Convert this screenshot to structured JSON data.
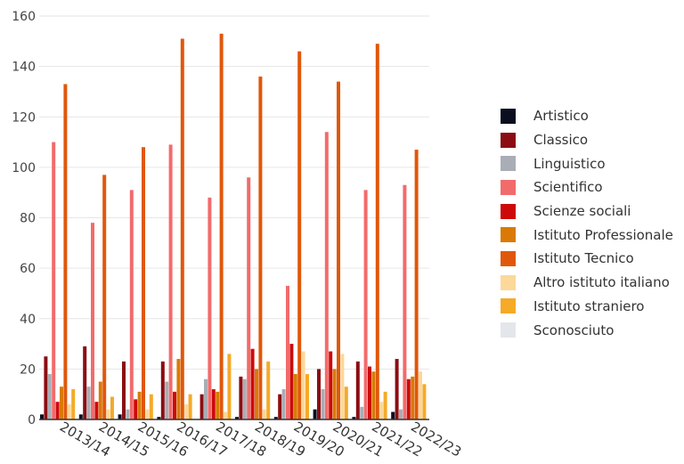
{
  "chart_data": {
    "type": "bar",
    "categories": [
      "2013/14",
      "2014/15",
      "2015/16",
      "2016/17",
      "2017/18",
      "2018/19",
      "2019/20",
      "2020/21",
      "2021/22",
      "2022/23"
    ],
    "ylim": [
      0,
      160
    ],
    "yticks": [
      0,
      20,
      40,
      60,
      80,
      100,
      120,
      140,
      160
    ],
    "grid": true,
    "legend_position": "right",
    "series": [
      {
        "name": "Artistico",
        "color": "#0b0e1f",
        "values": [
          2,
          2,
          2,
          1,
          0,
          1,
          1,
          4,
          1,
          3
        ]
      },
      {
        "name": "Classico",
        "color": "#8b0d12",
        "values": [
          25,
          29,
          23,
          23,
          10,
          17,
          10,
          20,
          23,
          24
        ]
      },
      {
        "name": "Linguistico",
        "color": "#a9adb5",
        "values": [
          18,
          13,
          4,
          15,
          16,
          16,
          12,
          12,
          5,
          4
        ]
      },
      {
        "name": "Scientifico",
        "color": "#f26b6b",
        "values": [
          110,
          78,
          91,
          109,
          88,
          96,
          53,
          114,
          91,
          93
        ]
      },
      {
        "name": "Scienze sociali",
        "color": "#cc0a0a",
        "values": [
          7,
          7,
          8,
          11,
          12,
          28,
          30,
          27,
          21,
          16
        ]
      },
      {
        "name": "Istituto Professionale",
        "color": "#d97a07",
        "values": [
          13,
          15,
          11,
          24,
          11,
          20,
          18,
          20,
          19,
          17
        ]
      },
      {
        "name": "Istituto Tecnico",
        "color": "#e0570b",
        "values": [
          133,
          97,
          108,
          151,
          153,
          136,
          146,
          134,
          149,
          107
        ]
      },
      {
        "name": "Altro istituto italiano",
        "color": "#fcd89a",
        "values": [
          6,
          4,
          4,
          6,
          3,
          4,
          27,
          26,
          7,
          19
        ]
      },
      {
        "name": "Istituto straniero",
        "color": "#f5aa28",
        "values": [
          12,
          9,
          10,
          10,
          26,
          23,
          18,
          13,
          11,
          14
        ]
      },
      {
        "name": "Sconosciuto",
        "color": "#e3e6ea",
        "values": [
          0,
          0,
          0,
          0,
          0,
          0,
          0,
          0,
          0,
          0
        ]
      }
    ]
  }
}
